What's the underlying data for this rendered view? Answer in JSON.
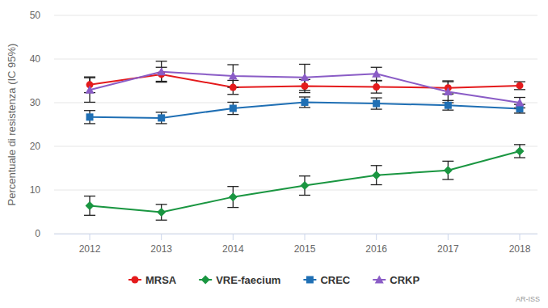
{
  "chart_data": {
    "type": "line",
    "y_label": "Percentuale di resistenza (IC 95%)",
    "categories": [
      "2012",
      "2013",
      "2014",
      "2015",
      "2016",
      "2017",
      "2018"
    ],
    "series": [
      {
        "name": "MRSA",
        "color": "#e41a1c",
        "marker": "circle",
        "values": [
          34.1,
          36.5,
          33.5,
          33.8,
          33.6,
          33.4,
          33.9
        ],
        "errors": [
          1.8,
          1.6,
          1.6,
          1.5,
          1.4,
          1.4,
          0.9
        ]
      },
      {
        "name": "VRE-faecium",
        "color": "#1a9641",
        "marker": "diamond",
        "values": [
          6.4,
          4.9,
          8.4,
          11.0,
          13.4,
          14.5,
          18.9
        ],
        "errors": [
          2.2,
          1.8,
          2.4,
          2.2,
          2.2,
          2.1,
          1.5
        ]
      },
      {
        "name": "CREC",
        "color": "#1f6fb4",
        "marker": "square",
        "values": [
          26.7,
          26.5,
          28.7,
          30.1,
          29.8,
          29.4,
          28.6
        ],
        "errors": [
          1.5,
          1.3,
          1.4,
          1.2,
          1.3,
          1.1,
          1.0
        ]
      },
      {
        "name": "CRKP",
        "color": "#8a5cc6",
        "marker": "triangle",
        "values": [
          32.9,
          37.1,
          36.1,
          35.8,
          36.6,
          32.5,
          30.0
        ],
        "errors": [
          2.8,
          2.4,
          2.6,
          3.0,
          1.5,
          2.5,
          1.2
        ]
      }
    ],
    "ylim": [
      0,
      50
    ],
    "yticks": [
      0,
      10,
      20,
      30,
      40,
      50
    ],
    "grid": true,
    "legend": "bottom",
    "annotations": [
      "AR-ISS"
    ]
  }
}
